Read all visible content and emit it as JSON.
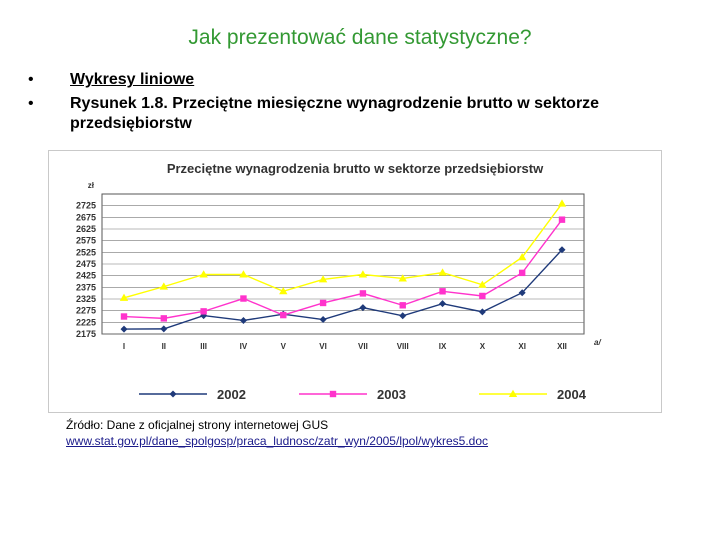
{
  "slide": {
    "title": "Jak prezentować dane statystyczne?",
    "bullets": [
      "Wykresy liniowe",
      "Rysunek 1.8. Przeciętne miesięczne wynagrodzenie brutto w sektorze przedsiębiorstw"
    ],
    "bullet_symbol": "•"
  },
  "source": {
    "text": "Źródło: Dane z oficjalnej strony internetowej GUS",
    "link": "www.stat.gov.pl/dane_spolgosp/praca_ludnosc/zatr_wyn/2005/lpol/wykres5.doc"
  },
  "chart_data": {
    "type": "line",
    "title": "Przeciętne wynagrodzenia brutto w sektorze przedsiębiorstw",
    "ylabel": "zł",
    "xlabel": "",
    "x_suffix": "a/",
    "categories": [
      "I",
      "II",
      "III",
      "IV",
      "V",
      "VI",
      "VII",
      "VIII",
      "IX",
      "X",
      "XI",
      "XII"
    ],
    "yticks": [
      2175,
      2225,
      2275,
      2325,
      2375,
      2425,
      2475,
      2525,
      2575,
      2625,
      2675,
      2725
    ],
    "ylim": [
      2175,
      2775
    ],
    "grid": true,
    "legend_position": "bottom",
    "series": [
      {
        "name": "2002",
        "color": "#1f3a7a",
        "marker": "diamond",
        "values": [
          2196,
          2197,
          2254,
          2233,
          2260,
          2237,
          2288,
          2253,
          2305,
          2270,
          2352,
          2536
        ]
      },
      {
        "name": "2003",
        "color": "#ff33cc",
        "marker": "square",
        "values": [
          2250,
          2242,
          2272,
          2327,
          2256,
          2308,
          2349,
          2298,
          2358,
          2338,
          2437,
          2665
        ]
      },
      {
        "name": "2004",
        "color": "#ffff00",
        "marker": "triangle",
        "values": [
          2330,
          2378,
          2430,
          2430,
          2358,
          2409,
          2430,
          2413,
          2438,
          2386,
          2504,
          2734
        ]
      }
    ]
  }
}
